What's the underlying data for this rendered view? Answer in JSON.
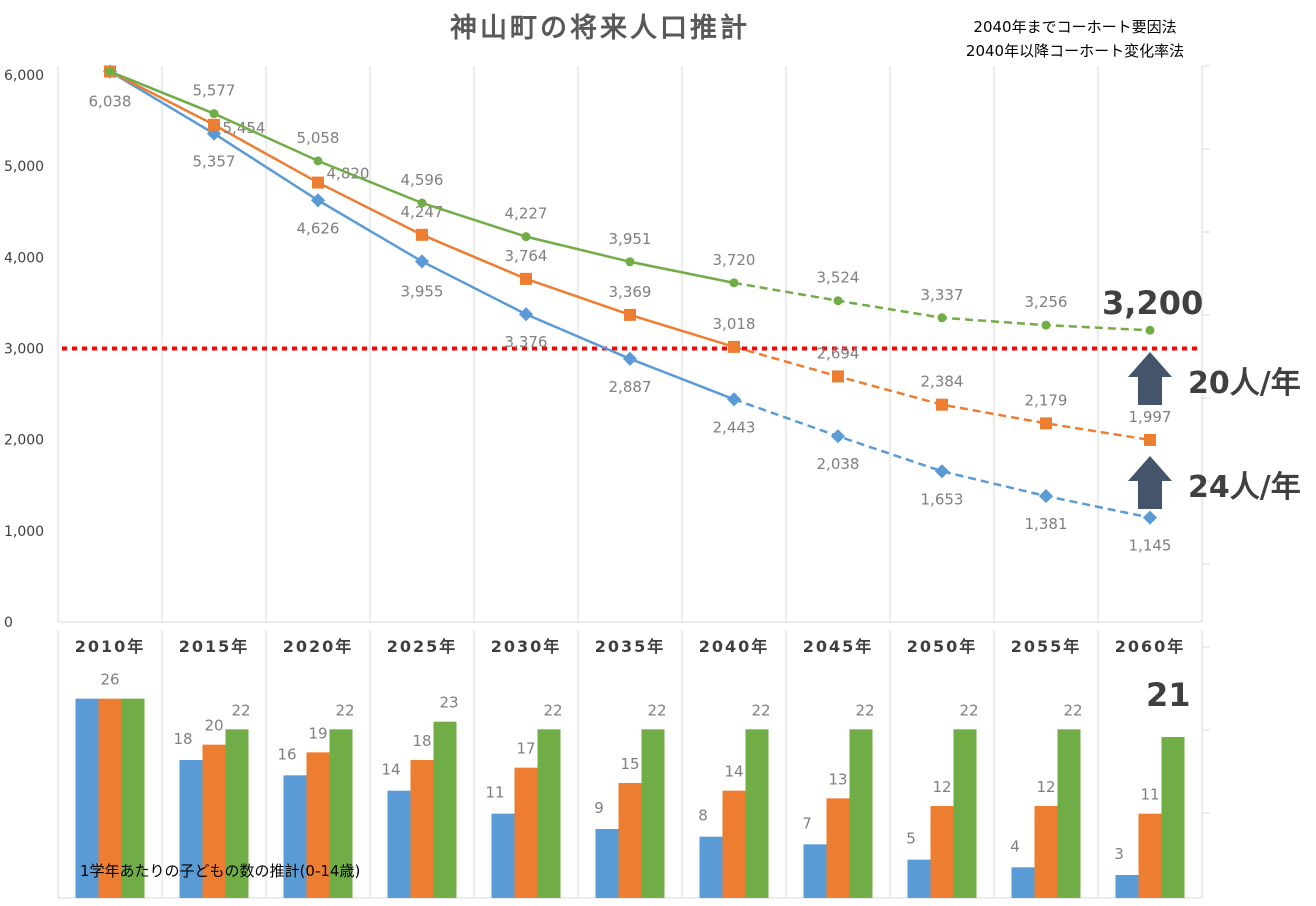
{
  "title": "神山町の将来人口推計",
  "method_note": [
    "2040年までコーホート要因法",
    "2040年以降コーホート変化率法"
  ],
  "colors": {
    "series1": "#5b9bd5",
    "series2": "#ed7d31",
    "series3": "#70ad47",
    "threshold": "#ff0000",
    "arrow": "#44546a",
    "grid": "#d9d9d9",
    "label": "#7f7f7f"
  },
  "icons": [
    "up-arrow-icon"
  ],
  "callouts": {
    "final_value": "3,200",
    "rate_upper": "20人/年",
    "rate_lower": "24人/年",
    "bar_final": "21"
  },
  "bar_caption": "1学年あたりの子どもの数の推計(0-14歳)",
  "chart_data": [
    {
      "type": "line",
      "title": "神山町の将来人口推計",
      "categories": [
        "2010年",
        "2015年",
        "2020年",
        "2025年",
        "2030年",
        "2035年",
        "2040年",
        "2045年",
        "2050年",
        "2055年",
        "2060年"
      ],
      "yticks": [
        "0",
        "1,000",
        "2,000",
        "3,000",
        "4,000",
        "5,000",
        "6,000"
      ],
      "ylim": [
        0,
        6000
      ],
      "grid": "vertical",
      "solid_until": "2040年",
      "dashed_after": "2040年",
      "threshold": 3000,
      "series": [
        {
          "values": [
            6038,
            5357,
            4626,
            3955,
            3376,
            2887,
            2443,
            2038,
            1653,
            1381,
            1145
          ],
          "labels": [
            "6,038",
            "5,357",
            "4,626",
            "3,955",
            "3,376",
            "2,887",
            "2,443",
            "2,038",
            "1,653",
            "1,381",
            "1,145"
          ]
        },
        {
          "values": [
            6038,
            5454,
            4820,
            4247,
            3764,
            3369,
            3018,
            2694,
            2384,
            2179,
            1997
          ],
          "labels": [
            "",
            "5,454",
            "4,820",
            "4,247",
            "3,764",
            "3,369",
            "3,018",
            "2,694",
            "2,384",
            "2,179",
            "1,997"
          ]
        },
        {
          "values": [
            6038,
            5577,
            5058,
            4596,
            4227,
            3951,
            3720,
            3524,
            3337,
            3256,
            3200
          ],
          "labels": [
            "",
            "5,577",
            "5,058",
            "4,596",
            "4,227",
            "3,951",
            "3,720",
            "3,524",
            "3,337",
            "3,256",
            ""
          ]
        }
      ]
    },
    {
      "type": "bar",
      "title": "1学年あたりの子どもの数の推計(0-14歳)",
      "categories": [
        "2010年",
        "2015年",
        "2020年",
        "2025年",
        "2030年",
        "2035年",
        "2040年",
        "2045年",
        "2050年",
        "2055年",
        "2060年"
      ],
      "ylim": [
        0,
        30
      ],
      "series": [
        {
          "values": [
            26,
            18,
            16,
            14,
            11,
            9,
            8,
            7,
            5,
            4,
            3
          ],
          "labels": [
            "",
            "18",
            "16",
            "14",
            "11",
            "9",
            "8",
            "7",
            "5",
            "4",
            "3"
          ]
        },
        {
          "values": [
            26,
            20,
            19,
            18,
            17,
            15,
            14,
            13,
            12,
            12,
            11
          ],
          "labels": [
            "26",
            "20",
            "19",
            "18",
            "17",
            "15",
            "14",
            "13",
            "12",
            "12",
            "11"
          ]
        },
        {
          "values": [
            26,
            22,
            22,
            23,
            22,
            22,
            22,
            22,
            22,
            22,
            21
          ],
          "labels": [
            "",
            "22",
            "22",
            "23",
            "22",
            "22",
            "22",
            "22",
            "22",
            "22",
            ""
          ]
        }
      ]
    }
  ]
}
